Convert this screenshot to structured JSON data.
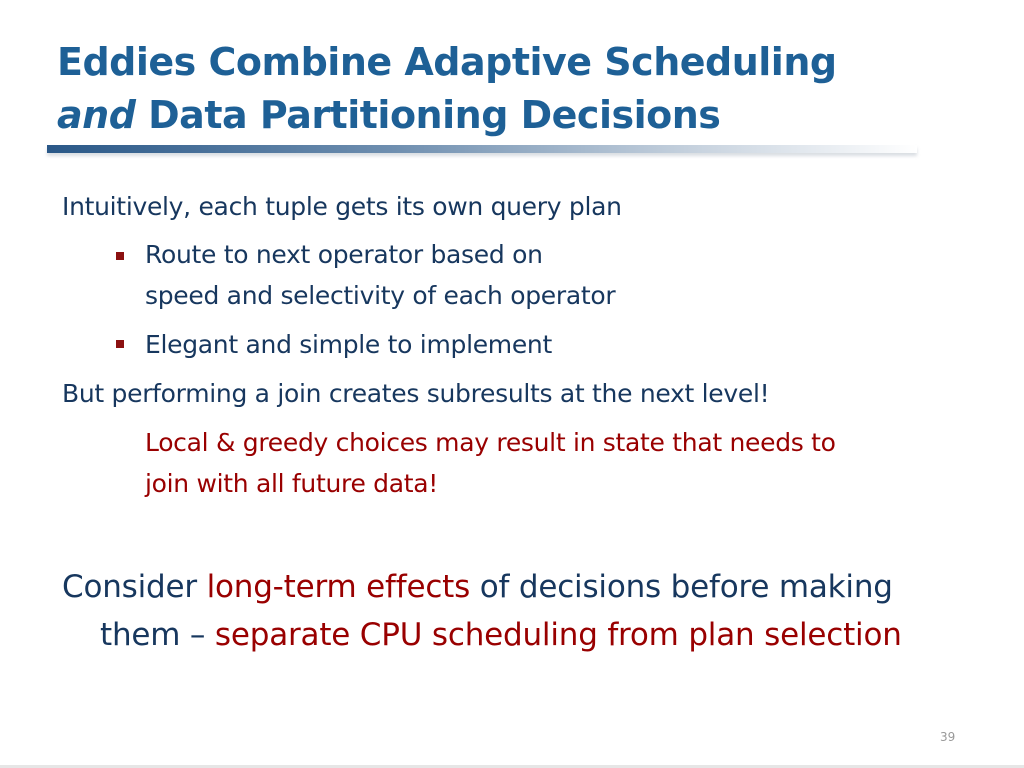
{
  "title": {
    "line1": "Eddies Combine Adaptive Scheduling",
    "line2_italic": "and",
    "line2_rest": " Data Partitioning Decisions"
  },
  "body": {
    "p1": "Intuitively, each tuple gets its own query plan",
    "b1_line1": "Route to next operator based on",
    "b1_line2": "speed and selectivity of each operator",
    "b2": "Elegant and simple to implement",
    "p2": "But performing a join creates subresults at the next level!",
    "note_line1": "Local & greedy choices may result in state that needs to",
    "note_line2": "join with all future data!"
  },
  "conclusion": {
    "a": "Consider ",
    "b": "long-term effects",
    "c": " of decisions before making",
    "d": "them – ",
    "e": "separate CPU scheduling from plan selection"
  },
  "slide_number": "39",
  "colors": {
    "title": "#1e6096",
    "text": "#17375e",
    "accent_red": "#990000"
  }
}
